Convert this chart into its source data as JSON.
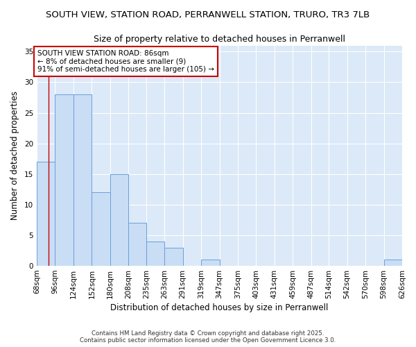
{
  "title_line1": "SOUTH VIEW, STATION ROAD, PERRANWELL STATION, TRURO, TR3 7LB",
  "title_line2": "Size of property relative to detached houses in Perranwell",
  "xlabel": "Distribution of detached houses by size in Perranwell",
  "ylabel": "Number of detached properties",
  "bar_values": [
    17,
    28,
    28,
    12,
    15,
    7,
    4,
    3,
    0,
    1,
    0,
    0,
    0,
    0,
    0,
    0,
    0,
    0,
    0,
    1
  ],
  "bin_edges": [
    68,
    96,
    124,
    152,
    180,
    208,
    235,
    263,
    291,
    319,
    347,
    375,
    403,
    431,
    459,
    487,
    514,
    542,
    570,
    598,
    626
  ],
  "x_labels": [
    "68sqm",
    "96sqm",
    "124sqm",
    "152sqm",
    "180sqm",
    "208sqm",
    "235sqm",
    "263sqm",
    "291sqm",
    "319sqm",
    "347sqm",
    "375sqm",
    "403sqm",
    "431sqm",
    "459sqm",
    "487sqm",
    "514sqm",
    "542sqm",
    "570sqm",
    "598sqm",
    "626sqm"
  ],
  "bar_color": "#c9ddf5",
  "bar_edge_color": "#6a9fd8",
  "property_size": 86,
  "annotation_text": "SOUTH VIEW STATION ROAD: 86sqm\n← 8% of detached houses are smaller (9)\n91% of semi-detached houses are larger (105) →",
  "annotation_box_color": "#ffffff",
  "annotation_box_edge_color": "#cc0000",
  "red_line_color": "#cc0000",
  "ylim": [
    0,
    36
  ],
  "yticks": [
    0,
    5,
    10,
    15,
    20,
    25,
    30,
    35
  ],
  "chart_bg_color": "#dce9f8",
  "fig_bg_color": "#ffffff",
  "footer_line1": "Contains HM Land Registry data © Crown copyright and database right 2025.",
  "footer_line2": "Contains public sector information licensed under the Open Government Licence 3.0.",
  "title_fontsize": 9.5,
  "subtitle_fontsize": 9.0,
  "tick_fontsize": 7.5,
  "label_fontsize": 8.5,
  "annotation_fontsize": 7.5
}
